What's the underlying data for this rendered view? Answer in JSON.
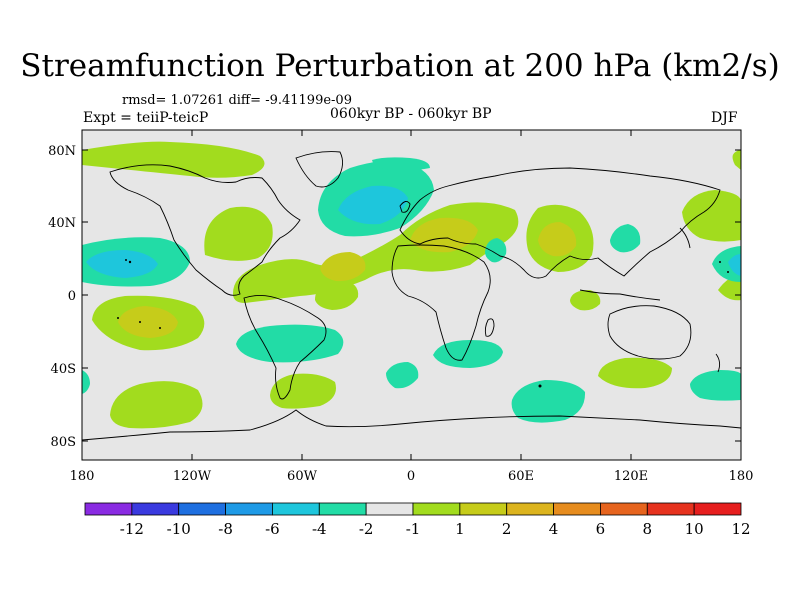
{
  "title": "Streamfunction Perturbation at 200 hPa (km2/s)",
  "stats": "rmsd= 1.07261 diff= -9.41199e-09",
  "experiment": "Expt = teiiP-teicP",
  "period": "060kyr BP - 060kyr BP",
  "season": "DJF",
  "map": {
    "lat_labels": [
      "80N",
      "40N",
      "0",
      "40S",
      "80S"
    ],
    "lon_labels": [
      "180",
      "120W",
      "60W",
      "0",
      "60E",
      "120E",
      "180"
    ]
  },
  "colorbar": {
    "labels": [
      "-12",
      "-10",
      "-8",
      "-6",
      "-4",
      "-2",
      "-1",
      "1",
      "2",
      "4",
      "6",
      "8",
      "10",
      "12"
    ],
    "colors": [
      "#8a2be2",
      "#3a3adf",
      "#1e6fe0",
      "#1e9ae6",
      "#1ec6dc",
      "#22dca6",
      "#e6e6e6",
      "#a2dc1e",
      "#c6cc1a",
      "#dcb41e",
      "#e68c1e",
      "#e6641e",
      "#e6321e",
      "#e61e1e"
    ]
  },
  "colors": {
    "neutral": "#e6e6e6",
    "green_pos1": "#a2dc1e",
    "teal_neg1": "#22dca6",
    "cyan_neg2": "#1ec6dc",
    "olive_pos2": "#c6cc1a"
  }
}
